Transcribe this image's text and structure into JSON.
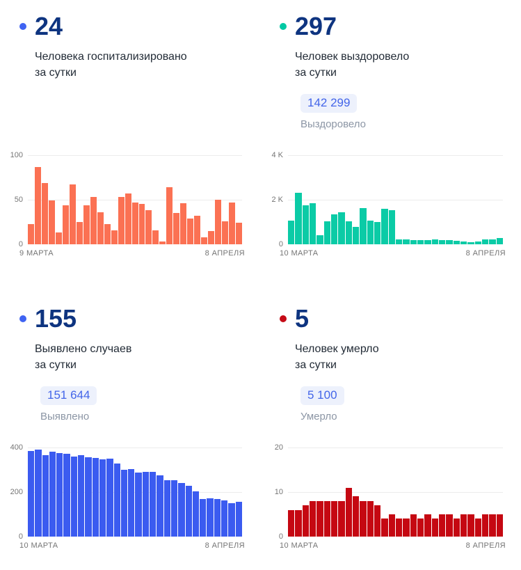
{
  "cards": [
    {
      "headline": "24",
      "subtitle1": "Человека госпитализировано",
      "subtitle2": "за сутки",
      "dot_color": "#3F63F2"
    },
    {
      "headline": "297",
      "subtitle1": "Человек выздоровело",
      "subtitle2": "за сутки",
      "dot_color": "#00C9A4",
      "badge_value": "142 299",
      "badge_label": "Выздоровело"
    },
    {
      "headline": "155",
      "subtitle1": "Выявлено случаев",
      "subtitle2": "за сутки",
      "dot_color": "#3F63F2",
      "badge_value": "151 644",
      "badge_label": "Выявлено"
    },
    {
      "headline": "5",
      "subtitle1": "Человек умерло",
      "subtitle2": "за сутки",
      "dot_color": "#C50A16",
      "badge_value": "5 100",
      "badge_label": "Умерло"
    }
  ],
  "colors": {
    "headline": "#0E3480",
    "badge_bg": "#EDF1FC",
    "badge_text": "#4365E9",
    "muted_label": "#8C96A5",
    "axis_text": "#757575",
    "gridline": "#ECECEC"
  },
  "chart_data": [
    {
      "type": "bar",
      "title": "Человека госпитализировано за сутки",
      "bar_color": "#FB7153",
      "ymax": 100,
      "ylim": [
        0,
        100
      ],
      "yticks": [
        "100",
        "50",
        "0"
      ],
      "x_start_label": "9 МАРТА",
      "x_end_label": "8 АПРЕЛЯ",
      "values": [
        23,
        87,
        69,
        49,
        13,
        44,
        67,
        25,
        44,
        53,
        36,
        23,
        16,
        53,
        57,
        47,
        45,
        38,
        16,
        3,
        64,
        35,
        46,
        29,
        32,
        8,
        15,
        50,
        26,
        47,
        24
      ]
    },
    {
      "type": "bar",
      "title": "Человек выздоровело за сутки",
      "bar_color": "#0BCBA6",
      "ymax": 4000,
      "ylim": [
        0,
        4000
      ],
      "yticks": [
        "4 K",
        "2 K",
        "0"
      ],
      "x_start_label": "10 МАРТА",
      "x_end_label": "8 АПРЕЛЯ",
      "values": [
        1050,
        2320,
        1760,
        1840,
        420,
        1040,
        1340,
        1450,
        1040,
        790,
        1630,
        1060,
        1010,
        1590,
        1530,
        230,
        210,
        190,
        190,
        190,
        210,
        190,
        190,
        160,
        130,
        105,
        130,
        210,
        210,
        297
      ]
    },
    {
      "type": "bar",
      "title": "Выявлено случаев за сутки",
      "bar_color": "#3B5BF0",
      "ymax": 400,
      "ylim": [
        0,
        400
      ],
      "yticks": [
        "400",
        "200",
        "0"
      ],
      "x_start_label": "10 МАРТА",
      "x_end_label": "8 АПРЕЛЯ",
      "values": [
        383,
        392,
        367,
        381,
        376,
        372,
        358,
        365,
        357,
        352,
        347,
        349,
        327,
        299,
        303,
        288,
        290,
        291,
        276,
        252,
        254,
        240,
        228,
        203,
        169,
        172,
        168,
        164,
        151,
        155
      ]
    },
    {
      "type": "bar",
      "title": "Человек умерло за сутки",
      "bar_color": "#C50812",
      "ymax": 20,
      "ylim": [
        0,
        20
      ],
      "yticks": [
        "20",
        "10",
        "0"
      ],
      "x_start_label": "10 МАРТА",
      "x_end_label": "8 АПРЕЛЯ",
      "values": [
        6,
        6,
        7,
        8,
        8,
        8,
        8,
        8,
        11,
        9,
        8,
        8,
        7,
        4,
        5,
        4,
        4,
        5,
        4,
        5,
        4,
        5,
        5,
        4,
        5,
        5,
        4,
        5,
        5,
        5
      ]
    }
  ]
}
